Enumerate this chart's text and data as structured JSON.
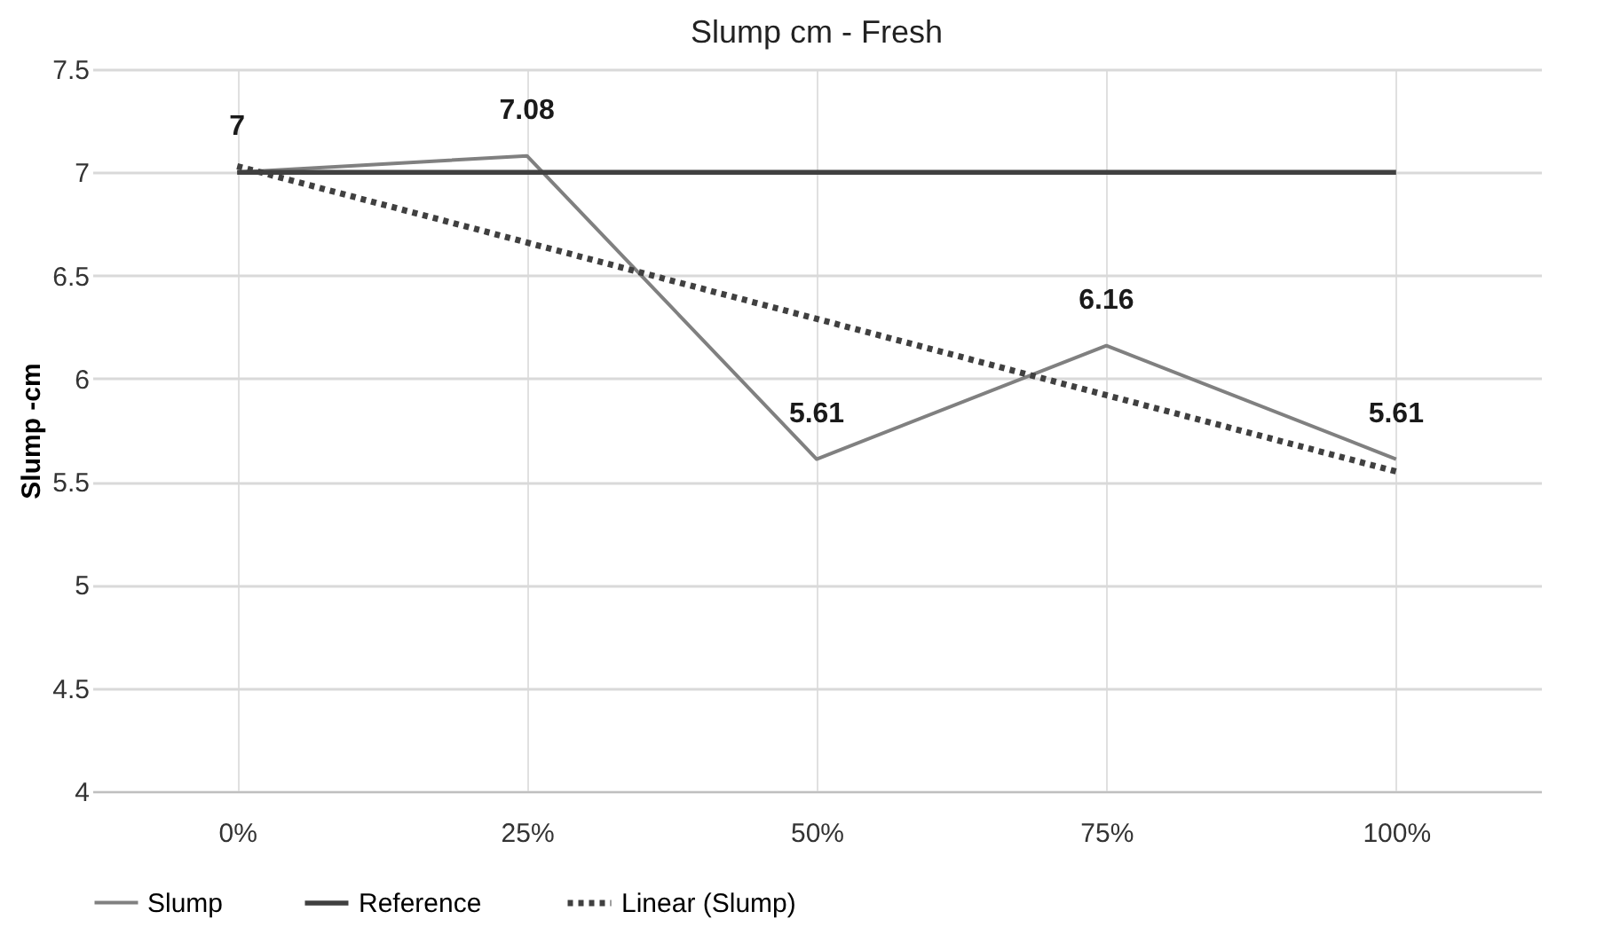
{
  "chart_data": {
    "type": "line",
    "title": "Slump cm - Fresh",
    "ylabel": "Slump -cm",
    "categories": [
      "0%",
      "25%",
      "50%",
      "75%",
      "100%"
    ],
    "series": [
      {
        "name": "Slump",
        "color": "#808080",
        "values": [
          7,
          7.08,
          5.61,
          6.16,
          5.61
        ],
        "value_labels": [
          "7",
          "7.08",
          "5.61",
          "6.16",
          "5.61"
        ],
        "line_style": "solid"
      },
      {
        "name": "Reference",
        "color": "#404040",
        "values": [
          7,
          7,
          7,
          7,
          7
        ],
        "line_style": "solid"
      },
      {
        "name": "Linear (Slump)",
        "color": "#404040",
        "values": [
          7.03,
          6.66,
          6.29,
          5.92,
          5.55
        ],
        "line_style": "dashed"
      }
    ],
    "ylim": [
      4,
      7.5
    ],
    "yticks": [
      4,
      4.5,
      5,
      5.5,
      6,
      6.5,
      7,
      7.5
    ],
    "grid": true,
    "legend": "bottom",
    "marker": "none"
  }
}
